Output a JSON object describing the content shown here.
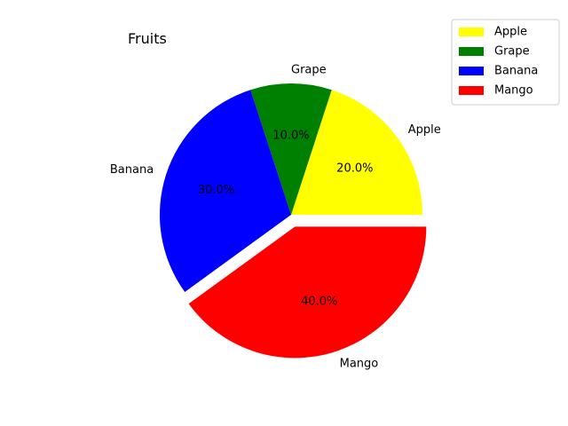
{
  "chart_data": {
    "type": "pie",
    "title": "Fruits",
    "categories": [
      "Apple",
      "Grape",
      "Banana",
      "Mango"
    ],
    "values": [
      20,
      10,
      30,
      40
    ],
    "percent_labels": [
      "20.0%",
      "10.0%",
      "30.0%",
      "40.0%"
    ],
    "colors": [
      "#ffff00",
      "#008000",
      "#0000ff",
      "#ff0000"
    ],
    "exploded": [
      false,
      false,
      false,
      true
    ],
    "start_angle_deg": 0,
    "direction": "counterclockwise",
    "legend": {
      "placement": "top-right",
      "entries": [
        "Apple",
        "Grape",
        "Banana",
        "Mango"
      ]
    }
  }
}
